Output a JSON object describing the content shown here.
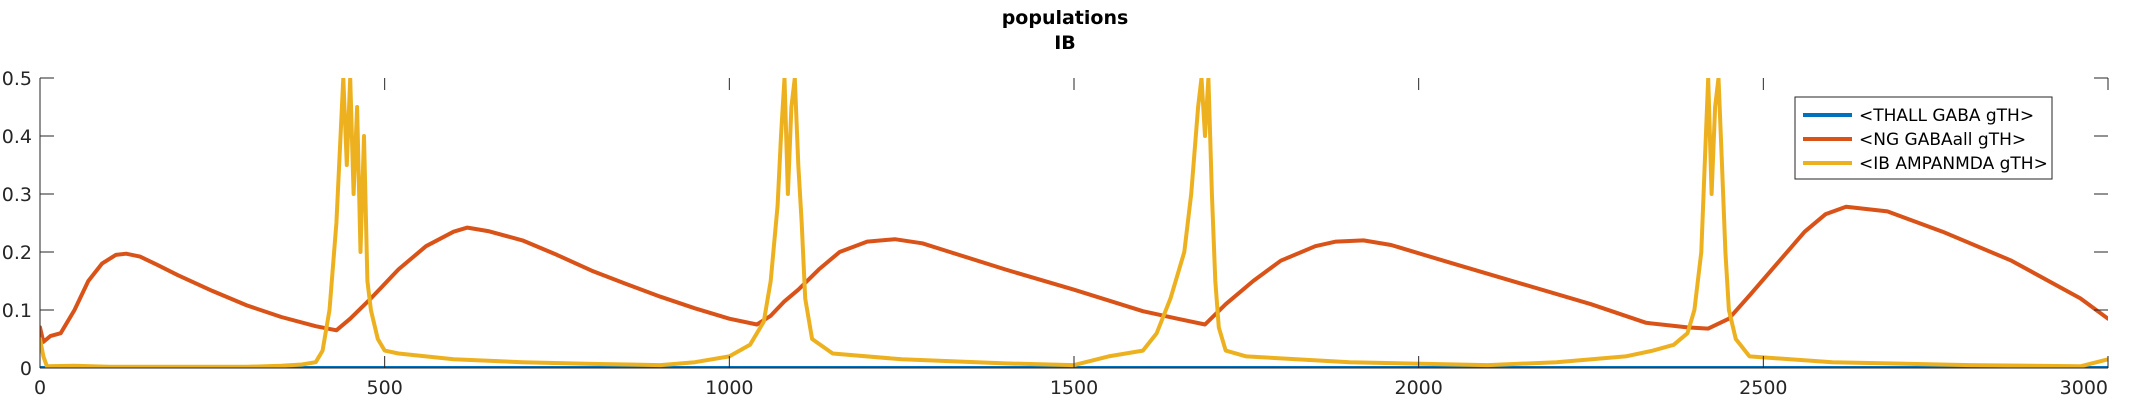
{
  "chart_data": {
    "type": "line",
    "title": "populations",
    "subtitle": "IB",
    "xlabel": "",
    "ylabel": "",
    "xlim": [
      0,
      3000
    ],
    "ylim": [
      0,
      0.5
    ],
    "xticks": [
      "0",
      "500",
      "1000",
      "1500",
      "2000",
      "2500",
      "3000"
    ],
    "yticks": [
      "0",
      "0.1",
      "0.2",
      "0.3",
      "0.4",
      "0.5"
    ],
    "grid": false,
    "legend_position": "top-right",
    "series": [
      {
        "name": "<THALL GABA gTH>",
        "color": "#0072BD",
        "x": [
          0,
          3000
        ],
        "y": [
          0,
          0
        ]
      },
      {
        "name": "<NG GABAall gTH>",
        "color": "#D95319",
        "x": [
          0,
          5,
          15,
          30,
          50,
          70,
          90,
          110,
          125,
          145,
          170,
          200,
          250,
          300,
          350,
          400,
          430,
          450,
          480,
          520,
          560,
          600,
          620,
          650,
          700,
          750,
          800,
          850,
          900,
          950,
          1000,
          1040,
          1060,
          1080,
          1100,
          1130,
          1160,
          1200,
          1240,
          1280,
          1320,
          1400,
          1500,
          1600,
          1650,
          1690,
          1720,
          1760,
          1800,
          1850,
          1880,
          1920,
          1960,
          2050,
          2150,
          2250,
          2330,
          2390,
          2420,
          2450,
          2480,
          2520,
          2560,
          2590,
          2620,
          2680,
          2760,
          2860,
          2960,
          3000
        ],
        "y": [
          0.07,
          0.045,
          0.055,
          0.06,
          0.1,
          0.15,
          0.18,
          0.195,
          0.197,
          0.192,
          0.178,
          0.16,
          0.133,
          0.108,
          0.088,
          0.072,
          0.065,
          0.085,
          0.12,
          0.17,
          0.21,
          0.235,
          0.242,
          0.236,
          0.22,
          0.195,
          0.168,
          0.145,
          0.123,
          0.103,
          0.085,
          0.075,
          0.09,
          0.115,
          0.135,
          0.17,
          0.2,
          0.218,
          0.222,
          0.215,
          0.2,
          0.17,
          0.135,
          0.098,
          0.085,
          0.075,
          0.11,
          0.15,
          0.185,
          0.21,
          0.218,
          0.22,
          0.212,
          0.18,
          0.145,
          0.11,
          0.078,
          0.07,
          0.068,
          0.085,
          0.125,
          0.18,
          0.235,
          0.265,
          0.278,
          0.27,
          0.235,
          0.185,
          0.12,
          0.085
        ]
      },
      {
        "name": "<IB AMPANMDA gTH>",
        "color": "#EDB120",
        "x": [
          0,
          5,
          10,
          50,
          100,
          150,
          200,
          250,
          300,
          350,
          380,
          400,
          410,
          420,
          430,
          440,
          445,
          450,
          455,
          460,
          465,
          470,
          475,
          480,
          490,
          500,
          520,
          600,
          700,
          800,
          900,
          950,
          1000,
          1030,
          1050,
          1060,
          1070,
          1075,
          1080,
          1085,
          1090,
          1095,
          1100,
          1105,
          1110,
          1120,
          1150,
          1250,
          1400,
          1500,
          1550,
          1600,
          1620,
          1640,
          1660,
          1670,
          1680,
          1685,
          1690,
          1695,
          1700,
          1705,
          1710,
          1720,
          1750,
          1900,
          2100,
          2200,
          2300,
          2340,
          2370,
          2390,
          2400,
          2410,
          2415,
          2420,
          2425,
          2430,
          2435,
          2440,
          2445,
          2450,
          2460,
          2480,
          2600,
          2800,
          2960,
          3000
        ],
        "y": [
          0.05,
          0.02,
          0.003,
          0.004,
          0.002,
          0.002,
          0.002,
          0.002,
          0.002,
          0.004,
          0.006,
          0.01,
          0.03,
          0.1,
          0.25,
          0.5,
          0.35,
          0.5,
          0.3,
          0.45,
          0.2,
          0.4,
          0.15,
          0.1,
          0.05,
          0.03,
          0.025,
          0.015,
          0.01,
          0.007,
          0.005,
          0.01,
          0.02,
          0.04,
          0.08,
          0.15,
          0.28,
          0.4,
          0.5,
          0.3,
          0.45,
          0.5,
          0.35,
          0.25,
          0.12,
          0.05,
          0.025,
          0.015,
          0.008,
          0.005,
          0.02,
          0.03,
          0.06,
          0.12,
          0.2,
          0.3,
          0.45,
          0.5,
          0.4,
          0.5,
          0.3,
          0.15,
          0.07,
          0.03,
          0.02,
          0.01,
          0.005,
          0.01,
          0.02,
          0.03,
          0.04,
          0.06,
          0.1,
          0.2,
          0.35,
          0.5,
          0.3,
          0.45,
          0.5,
          0.35,
          0.2,
          0.1,
          0.05,
          0.02,
          0.01,
          0.005,
          0.003,
          0.015
        ]
      }
    ]
  }
}
